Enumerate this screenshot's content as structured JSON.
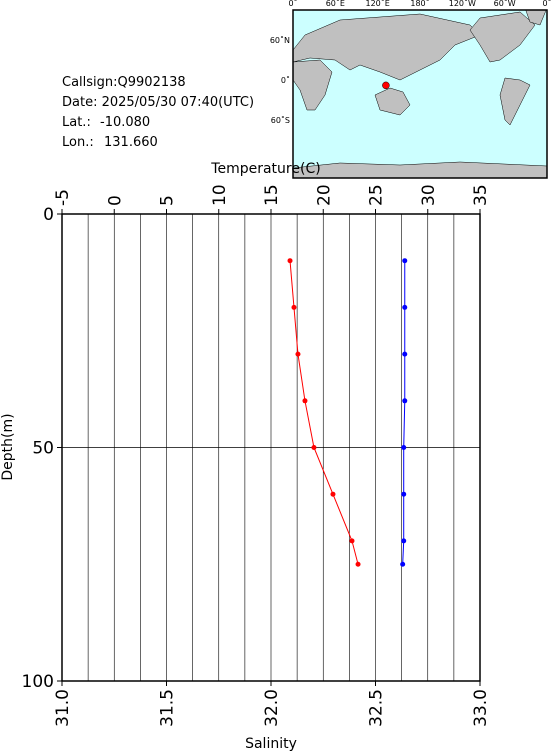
{
  "station": {
    "callsign": "Callsign:Q9902138",
    "date": "Date:  2025/05/30 07:40(UTC)",
    "lat_caption": "Lat.:",
    "lat": -10.08,
    "lat_label": "-10.080",
    "lon_caption": "Lon.:",
    "lon": 131.66,
    "lon_label": "131.660",
    "marker_color": "#ff0000"
  },
  "map": {
    "xticks": [
      "0˚",
      "60˚E",
      "120˚E",
      "180˚",
      "120˚W",
      "60˚W",
      "0˚"
    ],
    "yticks": [
      "60˚N",
      "0˚",
      "60˚S"
    ]
  },
  "chart_data": {
    "type": "line",
    "xlabel": "Salinity",
    "x2label": "Temperature(C)",
    "ylabel": "Depth(m)",
    "xlim": [
      31,
      33
    ],
    "xticks": [
      {
        "value": 31,
        "label": "31.0"
      },
      31.5,
      {
        "value": 32,
        "label": "32.0"
      },
      32.5,
      {
        "value": 33,
        "label": "33.0"
      }
    ],
    "x2lim": [
      -5,
      35
    ],
    "x2ticks": [
      -5,
      0,
      5,
      10,
      15,
      20,
      25,
      30,
      35
    ],
    "x2grid": [
      -2.5,
      0,
      2.5,
      5,
      7.5,
      10,
      12.5,
      15,
      17.5,
      20,
      22.5,
      25,
      27.5,
      30,
      32.5
    ],
    "ylim": [
      0,
      100
    ],
    "yticks": [
      0,
      50,
      100
    ],
    "y_inverted": true,
    "grid": true,
    "y": [
      10,
      20,
      30,
      40,
      50,
      60,
      70,
      75
    ],
    "series": [
      {
        "name": "Temperature",
        "axis": "x2",
        "color": "#ff0000",
        "values": [
          16.82,
          17.2,
          17.58,
          18.25,
          19.11,
          20.93,
          22.75,
          23.33
        ]
      },
      {
        "name": "Salinity",
        "axis": "x",
        "color": "#0000ff",
        "values": [
          32.64,
          32.64,
          32.64,
          32.64,
          32.635,
          32.635,
          32.635,
          32.63
        ]
      }
    ]
  }
}
